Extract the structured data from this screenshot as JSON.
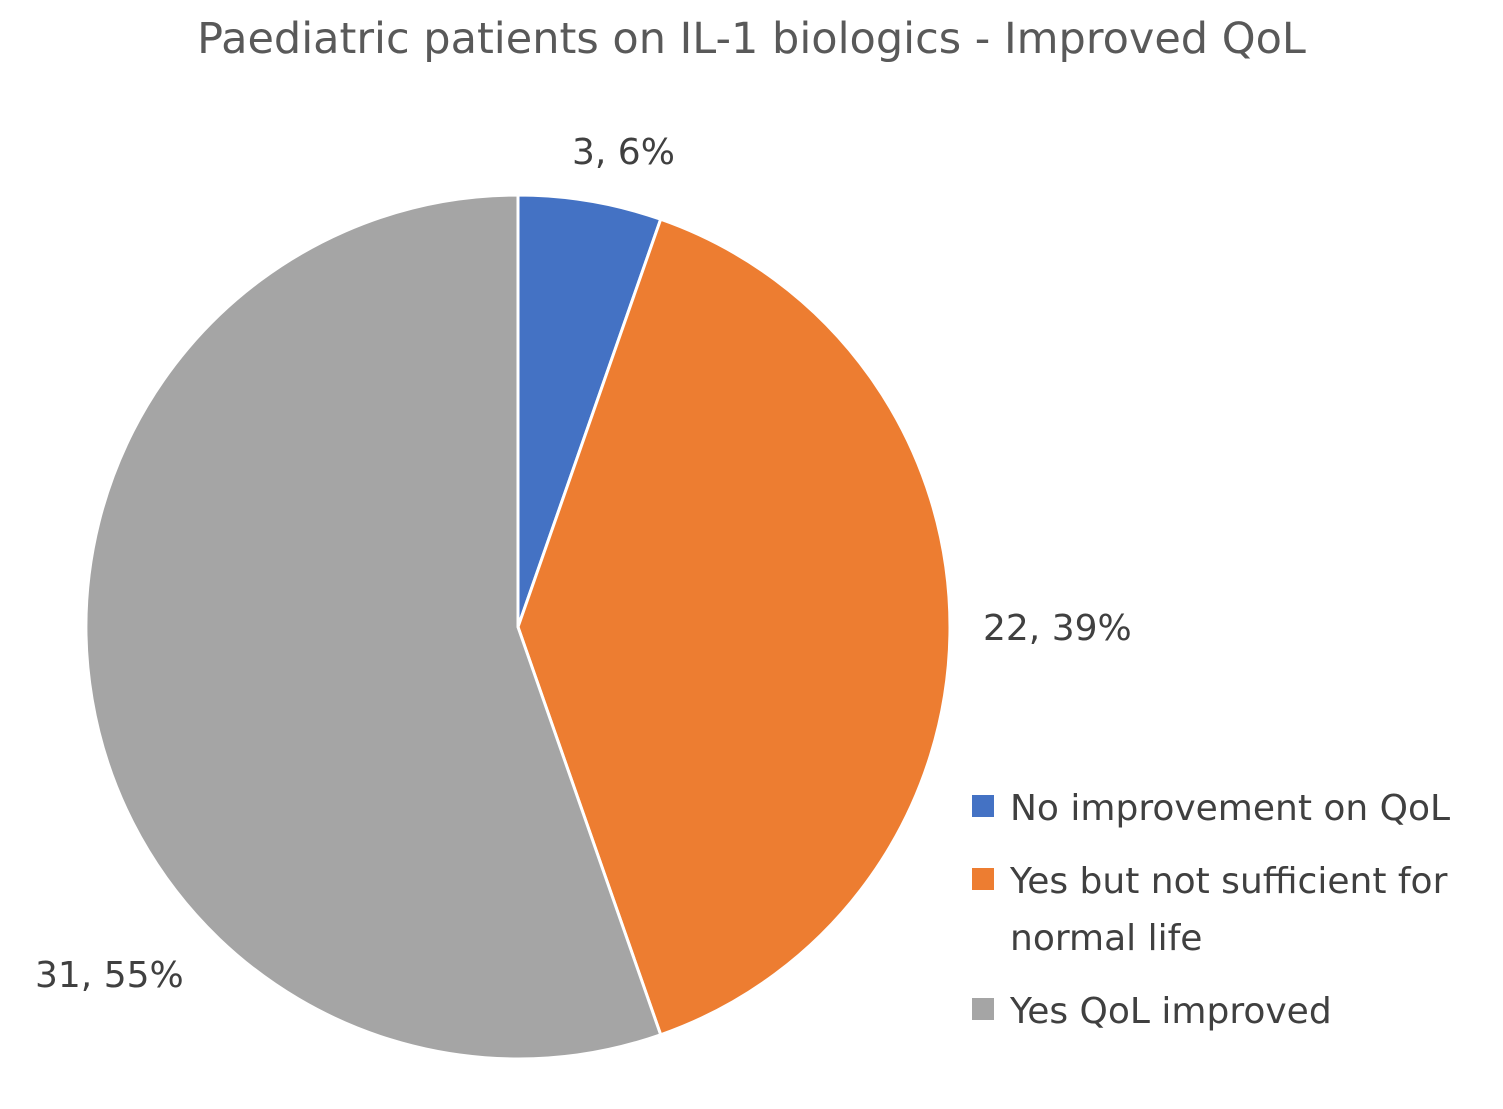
{
  "chart_data": {
    "type": "pie",
    "title": "Paediatric patients on IL-1 biologics - Improved QoL",
    "categories": [
      "No improvement on QoL",
      "Yes but not sufficient for normal life",
      "Yes QoL improved"
    ],
    "values": [
      3,
      22,
      31
    ],
    "percentages": [
      6,
      39,
      55
    ],
    "data_labels": [
      "3, 6%",
      "22, 39%",
      "31, 55%"
    ],
    "colors": [
      "#4472C4",
      "#ED7D31",
      "#A5A5A5"
    ],
    "legend_position": "right"
  }
}
